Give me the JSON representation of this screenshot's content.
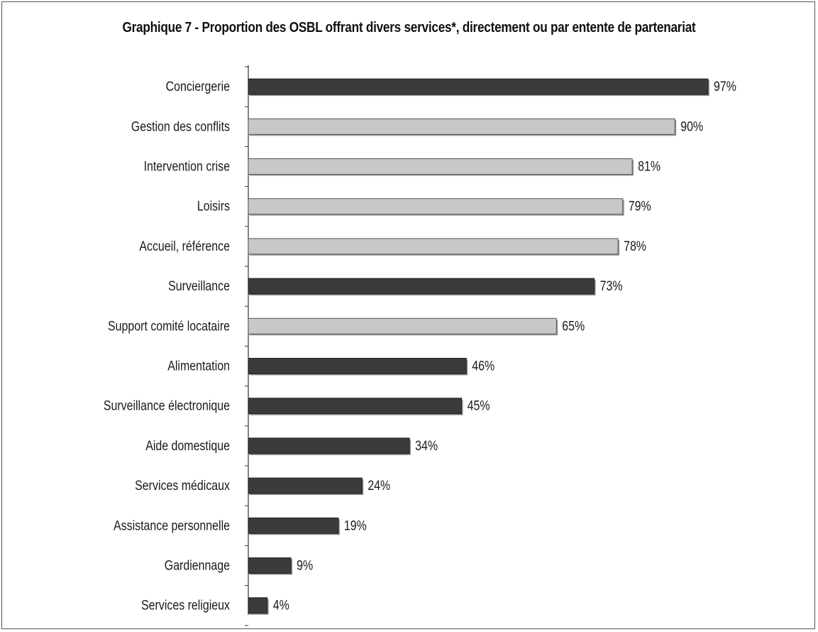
{
  "chart_data": {
    "type": "bar",
    "orientation": "horizontal",
    "title": "Graphique 7 - Proportion des OSBL offrant divers services*, directement ou par entente de partenariat",
    "xlabel": "",
    "ylabel": "",
    "xlim": [
      0,
      100
    ],
    "value_suffix": "%",
    "grid": false,
    "legend": "none",
    "colors": {
      "dark": "#3b3b3b",
      "light": "#c8c8c8"
    },
    "categories": [
      "Conciergerie",
      "Gestion des conflits",
      "Intervention crise",
      "Loisirs",
      "Accueil, référence",
      "Surveillance",
      "Support comité locataire",
      "Alimentation",
      "Surveillance électronique",
      "Aide domestique",
      "Services médicaux",
      "Assistance personnelle",
      "Gardiennage",
      "Services religieux"
    ],
    "values": [
      97,
      90,
      81,
      79,
      78,
      73,
      65,
      46,
      45,
      34,
      24,
      19,
      9,
      4
    ],
    "value_labels": [
      "97%",
      "90%",
      "81%",
      "79%",
      "78%",
      "73%",
      "65%",
      "46%",
      "45%",
      "34%",
      "24%",
      "19%",
      "9%",
      "4%"
    ],
    "bar_tone": [
      "dark",
      "light",
      "light",
      "light",
      "light",
      "dark",
      "light",
      "dark",
      "dark",
      "dark",
      "dark",
      "dark",
      "dark",
      "dark"
    ]
  }
}
